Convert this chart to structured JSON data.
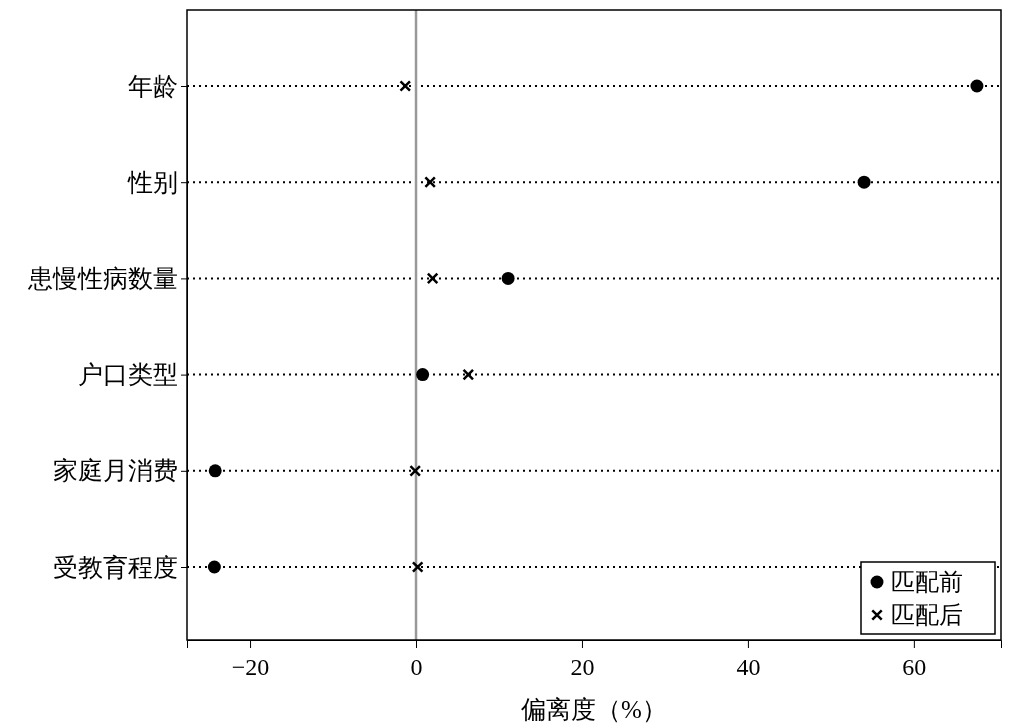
{
  "chart_data": {
    "type": "scatter",
    "orientation": "horizontal",
    "xlabel": "偏离度（%）",
    "categories": [
      "年龄",
      "性别",
      "患慢性病数量",
      "户口类型",
      "家庭月消费",
      "受教育程度"
    ],
    "series": [
      {
        "name": "匹配前",
        "color": "#000000",
        "marker": "circle",
        "values": [
          67.6,
          54.0,
          11.1,
          0.8,
          -24.2,
          -24.3
        ]
      },
      {
        "name": "匹配后",
        "color": "#000000",
        "marker": "cross",
        "values": [
          -1.3,
          1.7,
          2.0,
          6.3,
          -0.1,
          0.2
        ]
      }
    ],
    "xlim": [
      -27.6,
      70.5
    ],
    "xticks": [
      {
        "value": -20,
        "label": "−20"
      },
      0,
      20,
      40,
      60
    ],
    "grid": "y",
    "line_style": "dotted",
    "ref_lines": [
      {
        "axis": "x",
        "value": 0,
        "color": "#999999"
      }
    ],
    "legend": "bottom right"
  }
}
